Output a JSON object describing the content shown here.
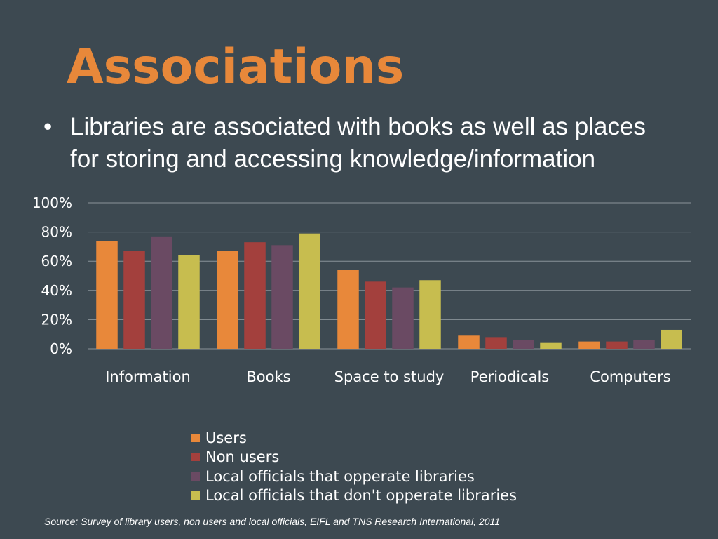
{
  "slide": {
    "title": "Associations",
    "bullet_symbol": "•",
    "bullet_text": "Libraries are associated with books as well as places for storing and accessing knowledge/information",
    "source": "Source: Survey of library users, non users and local officials, EIFL and TNS Research International, 2011"
  },
  "colors": {
    "background": "#3d4951",
    "title": "#e8883a"
  },
  "chart_data": {
    "type": "bar",
    "categories": [
      "Information",
      "Books",
      "Space to study",
      "Periodicals",
      "Computers"
    ],
    "series": [
      {
        "name": "Users",
        "color": "#e8883a",
        "values": [
          74,
          67,
          54,
          9,
          5
        ]
      },
      {
        "name": "Non users",
        "color": "#a3403d",
        "values": [
          67,
          73,
          46,
          8,
          5
        ]
      },
      {
        "name": "Local officials that opperate libraries",
        "color": "#6a4a63",
        "values": [
          77,
          71,
          42,
          6,
          6
        ]
      },
      {
        "name": "Local officials that don't opperate libraries",
        "color": "#c7bd4f",
        "values": [
          64,
          79,
          47,
          4,
          13
        ]
      }
    ],
    "y_ticks": [
      "0%",
      "20%",
      "40%",
      "60%",
      "80%",
      "100%"
    ],
    "ylim": [
      0,
      100
    ],
    "grid": true,
    "legend_position": "bottom"
  }
}
